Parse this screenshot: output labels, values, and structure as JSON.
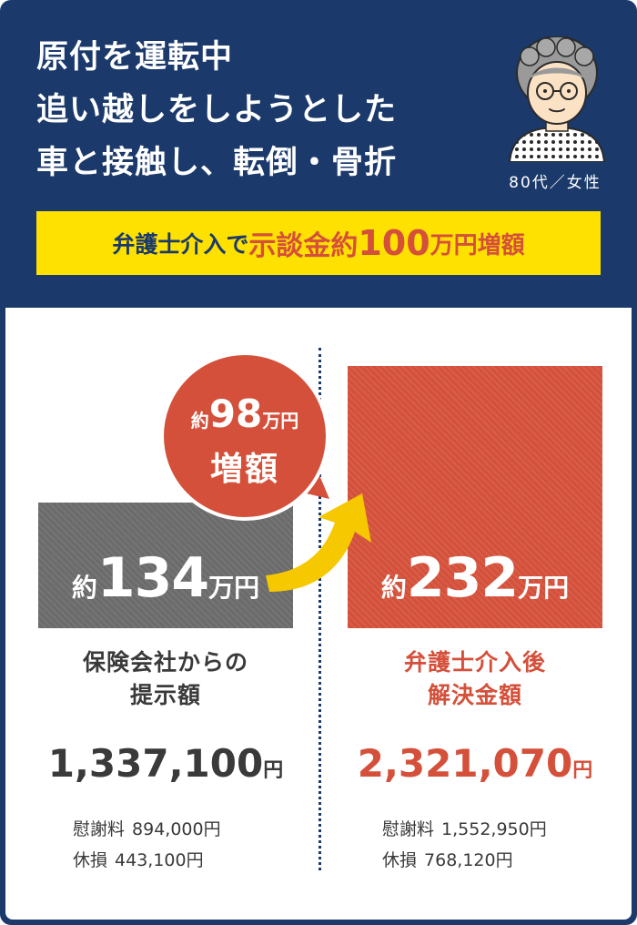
{
  "header": {
    "title_lines": [
      "原付を運転中",
      "追い越しをしようとした",
      "車と接触し、転倒・骨折"
    ],
    "client": "80代／女性"
  },
  "banner": {
    "prefix": "弁護士介入で",
    "highlight": "示談金約",
    "amount": "100",
    "unit": "万円増額"
  },
  "comparison": {
    "before": {
      "prefix": "約",
      "amount": "134",
      "unit": "万円",
      "label_lines": [
        "保険会社からの",
        "提示額"
      ],
      "total": "1,337,100",
      "total_unit": "円",
      "items": [
        {
          "label": "慰謝料",
          "value": "894,000円"
        },
        {
          "label": "休損",
          "value": "443,100円"
        }
      ]
    },
    "after": {
      "prefix": "約",
      "amount": "232",
      "unit": "万円",
      "label_lines": [
        "弁護士介入後",
        "解決金額"
      ],
      "total": "2,321,070",
      "total_unit": "円",
      "items": [
        {
          "label": "慰謝料",
          "value": "1,552,950円"
        },
        {
          "label": "休損",
          "value": "768,120円"
        }
      ]
    },
    "increase": {
      "prefix": "約",
      "amount": "98",
      "unit": "万円",
      "label": "増額"
    }
  },
  "colors": {
    "navy": "#1b3a6b",
    "accent_red": "#d4503a",
    "banner_yellow": "#ffe100",
    "gray_box": "#6b6b6b",
    "arrow_yellow": "#f5c800"
  },
  "icons": {
    "avatar": "elderly-woman-avatar-icon",
    "arrow": "curved-arrow-icon"
  }
}
